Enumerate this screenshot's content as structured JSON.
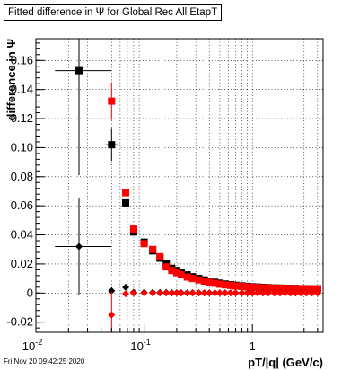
{
  "chart_data": {
    "type": "scatter",
    "title": "Fitted difference in  Ψ  for Global Rec All EtapT",
    "xlabel": "pT/|q| (GeV/c)",
    "ylabel": "difference in Ψ",
    "xscale": "log",
    "xlim": [
      0.01,
      4.5
    ],
    "ylim": [
      -0.027,
      0.175
    ],
    "grid": true,
    "xticks": [
      {
        "value": 0.01,
        "label": "10",
        "exp": "-2"
      },
      {
        "value": 0.1,
        "label": "10",
        "exp": "-1"
      },
      {
        "value": 1,
        "label": "1",
        "exp": ""
      }
    ],
    "yticks": [
      -0.02,
      0,
      0.02,
      0.04,
      0.06,
      0.08,
      0.1,
      0.12,
      0.14,
      0.16
    ],
    "series": [
      {
        "color": "#000000",
        "marker": "square",
        "points": [
          {
            "x": 0.025,
            "y": 0.153,
            "xerr": [
              0.015,
              0.05
            ],
            "yerr": 0.072
          },
          {
            "x": 0.05,
            "y": 0.102,
            "xerr": [
              0.044,
              0.058
            ],
            "yerr": 0.011
          },
          {
            "x": 0.0675,
            "y": 0.062
          },
          {
            "x": 0.08,
            "y": 0.042
          },
          {
            "x": 0.1,
            "y": 0.035
          },
          {
            "x": 0.12,
            "y": 0.029
          },
          {
            "x": 0.14,
            "y": 0.024
          },
          {
            "x": 0.16,
            "y": 0.02
          },
          {
            "x": 0.18,
            "y": 0.017
          },
          {
            "x": 0.2,
            "y": 0.0155
          },
          {
            "x": 0.22,
            "y": 0.014
          },
          {
            "x": 0.25,
            "y": 0.0125
          },
          {
            "x": 0.28,
            "y": 0.0112
          },
          {
            "x": 0.32,
            "y": 0.01
          },
          {
            "x": 0.36,
            "y": 0.009
          },
          {
            "x": 0.4,
            "y": 0.0082
          },
          {
            "x": 0.45,
            "y": 0.0074
          },
          {
            "x": 0.5,
            "y": 0.0068
          },
          {
            "x": 0.56,
            "y": 0.0062
          },
          {
            "x": 0.63,
            "y": 0.0057
          },
          {
            "x": 0.7,
            "y": 0.0053
          },
          {
            "x": 0.8,
            "y": 0.0049
          },
          {
            "x": 0.9,
            "y": 0.0046
          },
          {
            "x": 1.0,
            "y": 0.0043
          },
          {
            "x": 1.12,
            "y": 0.0041
          },
          {
            "x": 1.25,
            "y": 0.0039
          },
          {
            "x": 1.4,
            "y": 0.0037
          },
          {
            "x": 1.6,
            "y": 0.0035
          },
          {
            "x": 1.8,
            "y": 0.0034
          },
          {
            "x": 2.0,
            "y": 0.0033
          },
          {
            "x": 2.25,
            "y": 0.0032
          },
          {
            "x": 2.5,
            "y": 0.0031
          },
          {
            "x": 2.8,
            "y": 0.003
          },
          {
            "x": 3.15,
            "y": 0.003
          },
          {
            "x": 3.55,
            "y": 0.0029
          },
          {
            "x": 4.0,
            "y": 0.0029
          }
        ]
      },
      {
        "color": "#ff0000",
        "marker": "square",
        "points": [
          {
            "x": 0.05,
            "y": 0.132,
            "yerr": 0.013
          },
          {
            "x": 0.0675,
            "y": 0.069
          },
          {
            "x": 0.08,
            "y": 0.044
          },
          {
            "x": 0.1,
            "y": 0.034
          },
          {
            "x": 0.12,
            "y": 0.03
          },
          {
            "x": 0.14,
            "y": 0.025
          },
          {
            "x": 0.16,
            "y": 0.018
          },
          {
            "x": 0.18,
            "y": 0.0155
          },
          {
            "x": 0.2,
            "y": 0.014
          },
          {
            "x": 0.22,
            "y": 0.0125
          },
          {
            "x": 0.25,
            "y": 0.011
          },
          {
            "x": 0.28,
            "y": 0.01
          },
          {
            "x": 0.32,
            "y": 0.009
          },
          {
            "x": 0.36,
            "y": 0.0082
          },
          {
            "x": 0.4,
            "y": 0.0074
          },
          {
            "x": 0.45,
            "y": 0.0067
          },
          {
            "x": 0.5,
            "y": 0.0061
          },
          {
            "x": 0.56,
            "y": 0.0056
          },
          {
            "x": 0.63,
            "y": 0.0052
          },
          {
            "x": 0.7,
            "y": 0.0048
          },
          {
            "x": 0.8,
            "y": 0.0045
          },
          {
            "x": 0.9,
            "y": 0.0042
          },
          {
            "x": 1.0,
            "y": 0.004
          },
          {
            "x": 1.12,
            "y": 0.0038
          },
          {
            "x": 1.25,
            "y": 0.0036
          },
          {
            "x": 1.4,
            "y": 0.0035
          },
          {
            "x": 1.6,
            "y": 0.0034
          },
          {
            "x": 1.8,
            "y": 0.0033
          },
          {
            "x": 2.0,
            "y": 0.0032
          },
          {
            "x": 2.25,
            "y": 0.0031
          },
          {
            "x": 2.5,
            "y": 0.003
          },
          {
            "x": 2.8,
            "y": 0.003
          },
          {
            "x": 3.15,
            "y": 0.0029
          },
          {
            "x": 3.55,
            "y": 0.0029
          },
          {
            "x": 4.0,
            "y": 0.0029
          }
        ]
      },
      {
        "color": "#000000",
        "marker": "diamond",
        "points": [
          {
            "x": 0.025,
            "y": 0.032,
            "xerr": [
              0.015,
              0.05
            ],
            "yerr": 0.033
          },
          {
            "x": 0.05,
            "y": 0.0015
          },
          {
            "x": 0.0675,
            "y": 0.004
          },
          {
            "x": 0.08,
            "y": 0.0005
          },
          {
            "x": 0.1,
            "y": 0.0004
          },
          {
            "x": 0.12,
            "y": 0.0004
          },
          {
            "x": 0.14,
            "y": 0.0003
          },
          {
            "x": 0.16,
            "y": 0.0003
          },
          {
            "x": 0.18,
            "y": 0.0002
          },
          {
            "x": 0.2,
            "y": 0.0002
          },
          {
            "x": 0.22,
            "y": 0.0002
          },
          {
            "x": 0.25,
            "y": 0.0002
          },
          {
            "x": 0.28,
            "y": 0.0002
          },
          {
            "x": 0.32,
            "y": 0.0001
          },
          {
            "x": 0.36,
            "y": 0.0001
          },
          {
            "x": 0.4,
            "y": 0.0001
          },
          {
            "x": 0.45,
            "y": 0.0001
          },
          {
            "x": 0.5,
            "y": 0.0001
          },
          {
            "x": 0.56,
            "y": 0.0001
          },
          {
            "x": 0.63,
            "y": 0.0001
          },
          {
            "x": 0.7,
            "y": 0.0001
          },
          {
            "x": 0.8,
            "y": 0.0001
          },
          {
            "x": 0.9,
            "y": 0.0001
          },
          {
            "x": 1.0,
            "y": 0.0001
          },
          {
            "x": 1.12,
            "y": 0.0001
          },
          {
            "x": 1.25,
            "y": 0.0001
          },
          {
            "x": 1.4,
            "y": 0.0001
          },
          {
            "x": 1.6,
            "y": 0.0001
          },
          {
            "x": 1.8,
            "y": 0.0001
          },
          {
            "x": 2.0,
            "y": 0.0001
          },
          {
            "x": 2.25,
            "y": 0.0001
          },
          {
            "x": 2.5,
            "y": 0.0001
          },
          {
            "x": 2.8,
            "y": 0.0001
          },
          {
            "x": 3.15,
            "y": 0.0001
          },
          {
            "x": 3.55,
            "y": 0.0001
          },
          {
            "x": 4.0,
            "y": 0.0001
          }
        ]
      },
      {
        "color": "#ff0000",
        "marker": "diamond",
        "points": [
          {
            "x": 0.05,
            "y": -0.015,
            "yerr": 0.016
          },
          {
            "x": 0.0675,
            "y": -0.0005
          },
          {
            "x": 0.08,
            "y": 0.0
          },
          {
            "x": 0.1,
            "y": 0.0
          },
          {
            "x": 0.12,
            "y": 0.0
          },
          {
            "x": 0.14,
            "y": 0.0
          },
          {
            "x": 0.16,
            "y": 0.0
          },
          {
            "x": 0.18,
            "y": 0.0
          },
          {
            "x": 0.2,
            "y": 0.0
          },
          {
            "x": 0.22,
            "y": 0.0
          },
          {
            "x": 0.25,
            "y": 0.0
          },
          {
            "x": 0.28,
            "y": 0.0
          },
          {
            "x": 0.32,
            "y": 0.0
          },
          {
            "x": 0.36,
            "y": 0.0
          },
          {
            "x": 0.4,
            "y": 0.0
          },
          {
            "x": 0.45,
            "y": 0.0
          },
          {
            "x": 0.5,
            "y": 0.0
          },
          {
            "x": 0.56,
            "y": 0.0
          },
          {
            "x": 0.63,
            "y": 0.0
          },
          {
            "x": 0.7,
            "y": 0.0
          },
          {
            "x": 0.8,
            "y": 0.0
          },
          {
            "x": 0.9,
            "y": 0.0
          },
          {
            "x": 1.0,
            "y": 0.0
          },
          {
            "x": 1.12,
            "y": 0.0
          },
          {
            "x": 1.25,
            "y": 0.0
          },
          {
            "x": 1.4,
            "y": 0.0
          },
          {
            "x": 1.6,
            "y": 0.0
          },
          {
            "x": 1.8,
            "y": 0.0
          },
          {
            "x": 2.0,
            "y": 0.0
          },
          {
            "x": 2.25,
            "y": 0.0
          },
          {
            "x": 2.5,
            "y": 0.0
          },
          {
            "x": 2.8,
            "y": 0.0
          },
          {
            "x": 3.15,
            "y": 0.0
          },
          {
            "x": 3.55,
            "y": 0.0
          },
          {
            "x": 4.0,
            "y": 0.0
          }
        ]
      }
    ]
  },
  "footer": {
    "timestamp": "Fri Nov 20 09:42:25 2020"
  }
}
